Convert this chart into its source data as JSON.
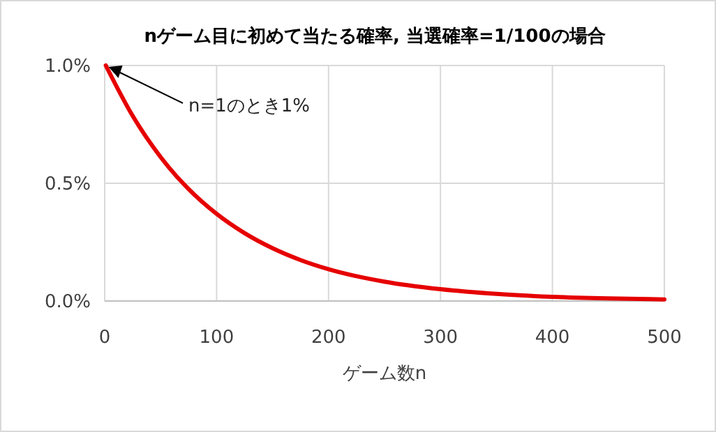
{
  "chart_data": {
    "type": "line",
    "title": "nゲーム目に初めて当たる確率, 当選確率=1/100の場合",
    "xlabel": "ゲーム数n",
    "x": [
      1,
      25,
      50,
      75,
      100,
      125,
      150,
      175,
      200,
      250,
      300,
      350,
      400,
      450,
      500
    ],
    "series": [
      {
        "color": "#e60000",
        "values": [
          1.0,
          0.786,
          0.611,
          0.475,
          0.37,
          0.288,
          0.224,
          0.174,
          0.135,
          0.082,
          0.05,
          0.03,
          0.018,
          0.011,
          0.007
        ]
      }
    ],
    "xlim": [
      0,
      500
    ],
    "xticks": [
      0,
      100,
      200,
      300,
      400,
      500
    ],
    "ylim": [
      0,
      1
    ],
    "yticks": [
      {
        "value": 0,
        "label": "0.0%"
      },
      {
        "value": 0.5,
        "label": "0.5%"
      },
      {
        "value": 1,
        "label": "1.0%"
      }
    ],
    "grid": true,
    "marker": "none",
    "line_style": "solid",
    "annotations": [
      {
        "text": "n=1のとき1%",
        "x": 1,
        "y": 1
      }
    ]
  }
}
